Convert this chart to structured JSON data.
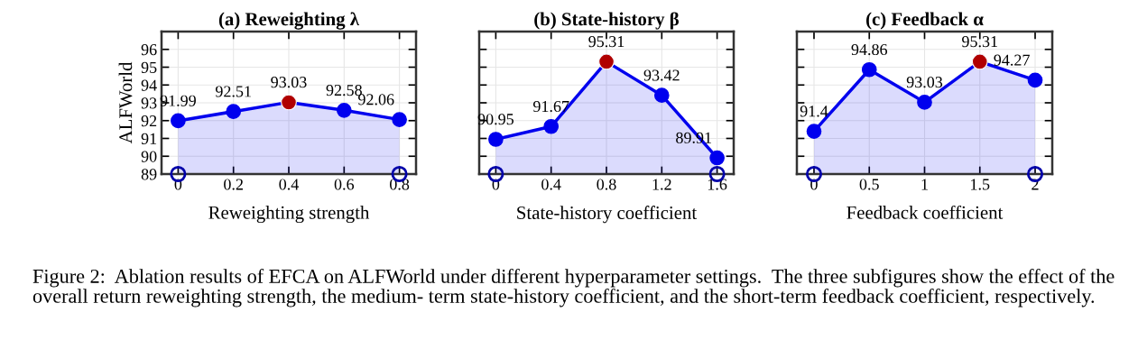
{
  "chart_data": [
    {
      "type": "area",
      "title": "(a) Reweighting λ",
      "xlabel": "Reweighting strength",
      "ylabel": "ALFWorld",
      "x": [
        0,
        0.2,
        0.4,
        0.6,
        0.8
      ],
      "xlim": [
        -0.06,
        0.86
      ],
      "xticks": [
        0,
        0.2,
        0.4,
        0.6,
        0.8
      ],
      "ylim": [
        89,
        97
      ],
      "yticks": [
        89,
        90,
        91,
        92,
        93,
        94,
        95,
        96
      ],
      "grid": true,
      "marker": "circle",
      "series": [
        {
          "color": "#0000ee",
          "values": [
            91.99,
            92.51,
            93.03,
            92.58,
            92.06
          ],
          "value_labels": [
            "91.99",
            "92.51",
            "93.03",
            "92.58",
            "92.06"
          ]
        },
        {
          "type": "scatter",
          "color": "#b00000",
          "values": [
            null,
            null,
            93.03,
            null,
            null
          ]
        },
        {
          "type": "scatter",
          "color": "#0000aa",
          "values": [
            89,
            null,
            null,
            null,
            89
          ]
        }
      ],
      "annotations": [
        "Figure 2:  Ablation results of EFCA on ALFWorld under different hyperparameter settings.  The three subfigures show the effect of the overall return reweighting strength, the medium- term state-history coefficient, and the short-term feedback coefficient, respectively."
      ]
    },
    {
      "type": "area",
      "title": "(b) State-history β",
      "xlabel": "State-history coefficient",
      "x": [
        0,
        0.4,
        0.8,
        1.2,
        1.6
      ],
      "xlim": [
        -0.12,
        1.72
      ],
      "xticks": [
        0,
        0.4,
        0.8,
        1.2,
        1.6
      ],
      "ylim": [
        89,
        97
      ],
      "yticks": [
        89,
        90,
        91,
        92,
        93,
        94,
        95,
        96
      ],
      "tick_labels": "x",
      "grid": true,
      "marker": "circle",
      "series": [
        {
          "color": "#0000ee",
          "values": [
            90.95,
            91.67,
            95.31,
            93.42,
            89.91
          ],
          "value_labels": [
            "90.95",
            "91.67",
            "95.31",
            "93.42",
            "89.91"
          ]
        },
        {
          "type": "scatter",
          "color": "#b00000",
          "values": [
            null,
            null,
            95.31,
            null,
            null
          ]
        },
        {
          "type": "scatter",
          "color": "#0000aa",
          "values": [
            89,
            null,
            null,
            null,
            89
          ]
        }
      ]
    },
    {
      "type": "area",
      "title": "(c) Feedback α",
      "xlabel": "Feedback coefficient",
      "x": [
        0,
        0.5,
        1,
        1.5,
        2
      ],
      "xlim": [
        -0.155,
        2.155
      ],
      "xticks": [
        0,
        0.5,
        1,
        1.5,
        2
      ],
      "ylim": [
        89,
        97
      ],
      "yticks": [
        89,
        90,
        91,
        92,
        93,
        94,
        95,
        96
      ],
      "tick_labels": "x",
      "grid": true,
      "marker": "circle",
      "series": [
        {
          "color": "#0000ee",
          "values": [
            91.4,
            94.86,
            93.03,
            95.31,
            94.27
          ],
          "value_labels": [
            "91.4",
            "94.86",
            "93.03",
            "95.31",
            "94.27"
          ]
        },
        {
          "type": "scatter",
          "color": "#b00000",
          "values": [
            null,
            null,
            null,
            95.31,
            null
          ]
        },
        {
          "type": "scatter",
          "color": "#0000aa",
          "values": [
            89,
            null,
            null,
            null,
            89
          ]
        }
      ]
    }
  ]
}
